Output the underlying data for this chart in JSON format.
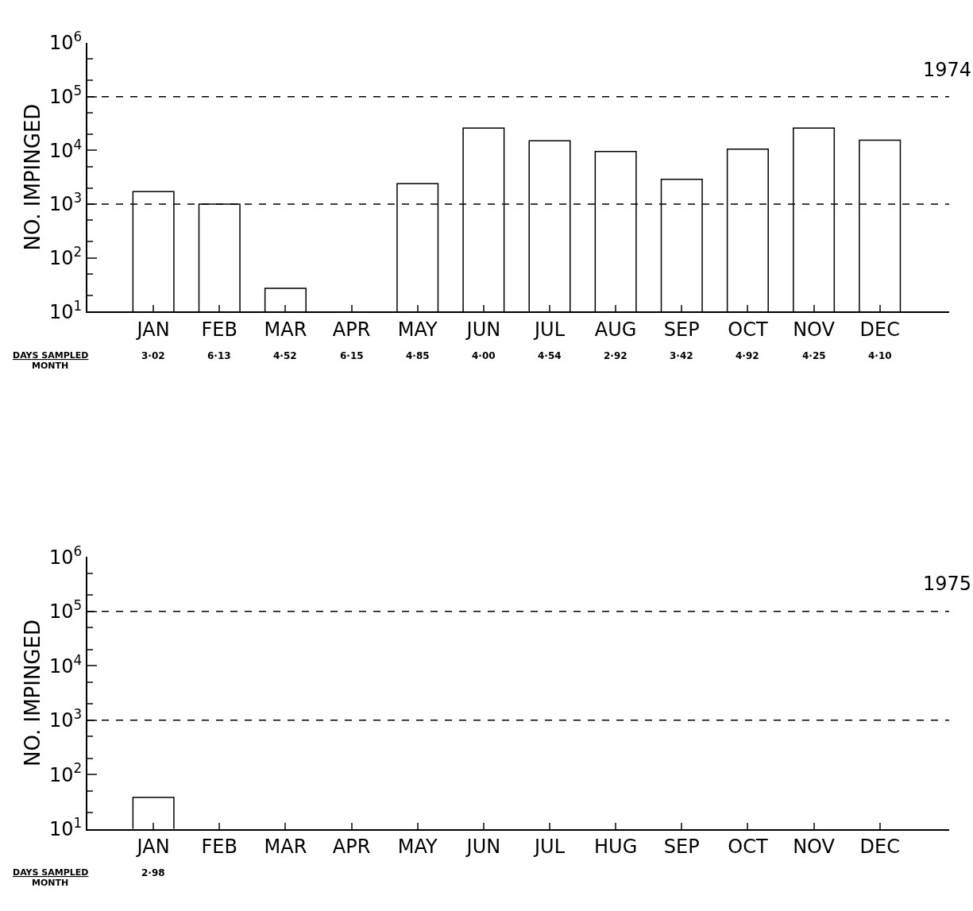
{
  "chart_data": [
    {
      "type": "bar",
      "title": "1974",
      "ylabel": "NO. IMPINGED",
      "categories": [
        "JAN",
        "FEB",
        "MAR",
        "APR",
        "MAY",
        "JUN",
        "JUL",
        "AUG",
        "SEP",
        "OCT",
        "NOV",
        "DEC"
      ],
      "values": [
        1700,
        1000,
        27,
        null,
        2400,
        26000,
        15000,
        9500,
        2900,
        10500,
        26000,
        15500
      ],
      "color": "#ffffff",
      "log": true,
      "ylim": [
        10,
        1000000
      ],
      "yticks": [
        {
          "value": 10,
          "label": "10$^{1}$"
        },
        {
          "value": 100,
          "label": "10$^{2}$"
        },
        {
          "value": 1000,
          "label": "10$^{3}$"
        },
        {
          "value": 10000,
          "label": "10$^{4}$"
        },
        {
          "value": 100000,
          "label": "10$^{5}$"
        },
        {
          "value": 1000000,
          "label": "10$^{6}$"
        }
      ],
      "ref_lines": [
        {
          "axis": "y",
          "value": 1000,
          "color": "#000000",
          "line_style": "dashed"
        },
        {
          "axis": "y",
          "value": 100000,
          "color": "#000000",
          "line_style": "dashed"
        }
      ],
      "annotations": [
        "DAYS SAMPLED",
        "MONTH",
        "3·02",
        "6·13",
        "4·52",
        "6·15",
        "4·85",
        "4·00",
        "4·54",
        "2·92",
        "3·42",
        "4·92",
        "4·25",
        "4·10"
      ]
    },
    {
      "type": "bar",
      "title": "1975",
      "ylabel": "NO. IMPINGED",
      "categories": [
        "JAN",
        "FEB",
        "MAR",
        "APR",
        "MAY",
        "JUN",
        "JUL",
        "HUG",
        "SEP",
        "OCT",
        "NOV",
        "DEC"
      ],
      "values": [
        38,
        null,
        null,
        null,
        null,
        null,
        null,
        null,
        null,
        null,
        null,
        null
      ],
      "color": "#ffffff",
      "log": true,
      "ylim": [
        10,
        1000000
      ],
      "yticks": [
        {
          "value": 10,
          "label": "10$^{1}$"
        },
        {
          "value": 100,
          "label": "10$^{2}$"
        },
        {
          "value": 1000,
          "label": "10$^{3}$"
        },
        {
          "value": 10000,
          "label": "10$^{4}$"
        },
        {
          "value": 100000,
          "label": "10$^{5}$"
        },
        {
          "value": 1000000,
          "label": "10$^{6}$"
        }
      ],
      "ref_lines": [
        {
          "axis": "y",
          "value": 1000,
          "color": "#000000",
          "line_style": "dashed"
        },
        {
          "axis": "y",
          "value": 100000,
          "color": "#000000",
          "line_style": "dashed"
        }
      ],
      "annotations": [
        "DAYS SAMPLED",
        "MONTH",
        "2·98"
      ]
    }
  ]
}
